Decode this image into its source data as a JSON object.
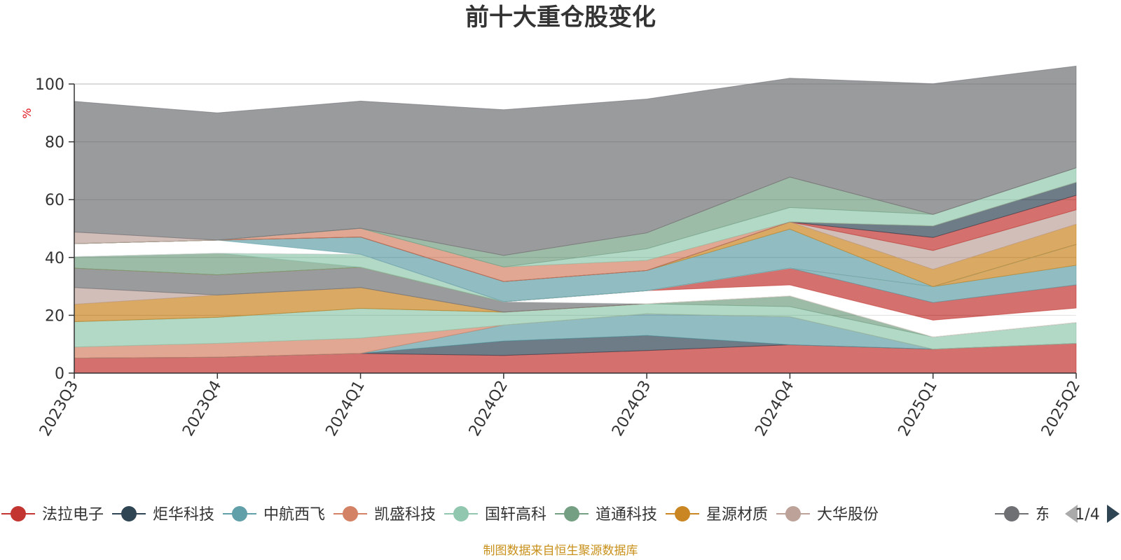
{
  "chart_data": {
    "type": "area",
    "stacked": true,
    "title": "前十大重仓股变化",
    "ylabel": "%",
    "ylim": [
      0,
      100
    ],
    "yticks": [
      0,
      20,
      40,
      60,
      80,
      100
    ],
    "grid": true,
    "categories": [
      "2023Q3",
      "2023Q4",
      "2024Q1",
      "2024Q2",
      "2024Q3",
      "2024Q4",
      "2025Q1",
      "2025Q2"
    ],
    "series": [
      {
        "name": "法拉电子",
        "color": "#c23531",
        "values": [
          5.2,
          5.5,
          6.8,
          6.1,
          7.8,
          9.8,
          8.3,
          10.3
        ]
      },
      {
        "name": "炬华科技",
        "color": "#2f4554",
        "values": [
          0,
          0,
          0,
          5.0,
          5.2,
          0,
          0,
          0
        ]
      },
      {
        "name": "中航西飞",
        "color": "#61a0a8",
        "values": [
          0,
          0,
          0,
          5.5,
          7.5,
          9.7,
          0,
          0
        ]
      },
      {
        "name": "凯盛科技",
        "color": "#d48265",
        "values": [
          3.8,
          4.8,
          5.3,
          0,
          0,
          0,
          0,
          0
        ]
      },
      {
        "name": "国轩高科",
        "color": "#91c7ae",
        "values": [
          8.8,
          9.0,
          10.3,
          4.5,
          3.5,
          3.5,
          4.2,
          7.2
        ]
      },
      {
        "name": "道通科技",
        "color": "#749f83",
        "values": [
          0,
          0,
          0,
          0,
          0,
          3.7,
          0,
          0
        ]
      },
      {
        "name": "星源材质",
        "color": "#ca8622",
        "values": [
          6.0,
          7.7,
          7.2,
          0,
          0,
          0,
          0,
          0
        ]
      },
      {
        "name": "大华股份",
        "color": "#bda29a",
        "values": [
          5.8,
          0,
          0,
          0,
          0,
          0,
          0,
          0
        ]
      },
      {
        "name": "",
        "color": "#6e7074",
        "values": [
          6.7,
          7.0,
          7.0,
          3.6,
          0,
          0,
          0,
          0
        ]
      },
      {
        "name": "",
        "color": "#ffffff",
        "values": [
          0,
          0,
          0,
          0,
          4.5,
          3.8,
          5.8,
          5.0
        ]
      },
      {
        "name": "",
        "color": "#c23531",
        "values": [
          0,
          0,
          0,
          0,
          0,
          5.8,
          6.1,
          8.0
        ]
      },
      {
        "name": "",
        "color": "#61a0a8",
        "values": [
          0,
          0,
          0,
          0,
          0,
          0,
          5.5,
          6.8
        ]
      },
      {
        "name": "",
        "color": "#ca8622",
        "values": [
          0,
          0,
          0,
          0,
          0,
          0,
          0,
          7.2
        ]
      },
      {
        "name": "",
        "color": "#749f83",
        "values": [
          4.0,
          7.5,
          0,
          0,
          0,
          0,
          0,
          0
        ]
      },
      {
        "name": "",
        "color": "#91c7ae",
        "values": [
          0,
          0,
          4.5,
          0,
          0,
          0,
          0,
          0
        ]
      },
      {
        "name": "",
        "color": "#6e7074",
        "values": [
          0,
          0,
          0,
          0,
          0,
          0,
          0,
          0
        ]
      },
      {
        "name": "",
        "color": "#ffffff",
        "values": [
          4.5,
          4.5,
          0,
          0,
          0,
          0,
          0,
          0
        ]
      },
      {
        "name": "",
        "color": "#61a0a8",
        "values": [
          0,
          0,
          6.0,
          7.0,
          7.0,
          13.5,
          0,
          0
        ]
      },
      {
        "name": "",
        "color": "#ca8622",
        "values": [
          0,
          0,
          0,
          0,
          0,
          2.5,
          6.0,
          7.0
        ]
      },
      {
        "name": "",
        "color": "#bda29a",
        "values": [
          0,
          0,
          0,
          0,
          0,
          0,
          6.5,
          5.0
        ]
      },
      {
        "name": "",
        "color": "#c23531",
        "values": [
          0,
          0,
          0,
          0,
          0,
          0,
          4.5,
          5.0
        ]
      },
      {
        "name": "",
        "color": "#2f4554",
        "values": [
          0,
          0,
          0,
          0,
          0,
          0,
          4.0,
          4.5
        ]
      },
      {
        "name": "",
        "color": "#d48265",
        "values": [
          0,
          0,
          3.0,
          5.0,
          3.5,
          0,
          0,
          0
        ]
      },
      {
        "name": "",
        "color": "#91c7ae",
        "values": [
          0,
          0,
          0,
          0,
          4.0,
          5.0,
          4.0,
          5.0
        ]
      },
      {
        "name": "",
        "color": "#749f83",
        "values": [
          0,
          0,
          0,
          4.0,
          5.5,
          10.5,
          0,
          0
        ]
      },
      {
        "name": "",
        "color": "#bda29a",
        "values": [
          4.0,
          0,
          0,
          0,
          0,
          0,
          0,
          0
        ]
      },
      {
        "name": "",
        "color": "#6e7074",
        "values": [
          45.2,
          44.0,
          44.0,
          50.4,
          46.3,
          34.2,
          45.2,
          35.2
        ]
      }
    ],
    "legend": {
      "placement": "bottom",
      "page": "1/4",
      "partial_label": "东"
    }
  },
  "source_note": "制图数据来自恒生聚源数据库"
}
